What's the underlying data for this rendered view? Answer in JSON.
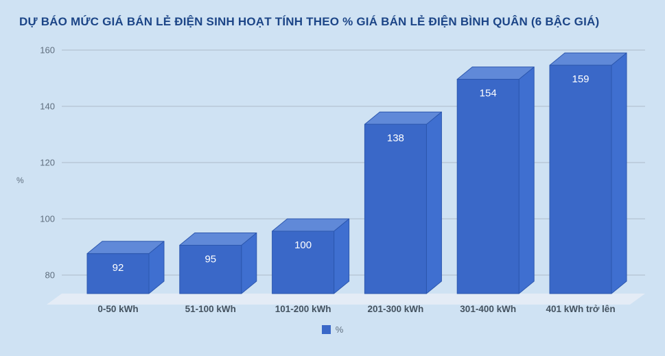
{
  "chart_data": {
    "type": "bar",
    "style": "3d-column",
    "title": "DỰ BÁO MỨC GIÁ BÁN LẺ ĐIỆN SINH HOẠT TÍNH THEO % GIÁ BÁN LẺ ĐIỆN BÌNH QUÂN (6 BẬC GIÁ)",
    "categories": [
      "0-50 kWh",
      "51-100 kWh",
      "101-200 kWh",
      "201-300 kWh",
      "301-400 kWh",
      "401 kWh trở lên"
    ],
    "series": [
      {
        "name": "%",
        "values": [
          92,
          95,
          100,
          138,
          154,
          159
        ]
      }
    ],
    "ylabel": "%",
    "yticks": [
      80,
      100,
      120,
      140,
      160
    ],
    "ylim": [
      78,
      160
    ],
    "grid": true,
    "legend_position": "bottom",
    "value_labels": "inside-top"
  },
  "colors": {
    "background": "#cfe2f3",
    "title": "#1c4587",
    "bar_front": "#3a68c8",
    "bar_top": "#6089d8",
    "bar_side": "#3f6fd0",
    "bar_edge": "#2c57ae",
    "gridline": "#aebbc8",
    "floor": "#e4ecf6",
    "tick_text": "#5f6e7e",
    "category_text": "#44525f",
    "value_text": "#ffffff"
  }
}
